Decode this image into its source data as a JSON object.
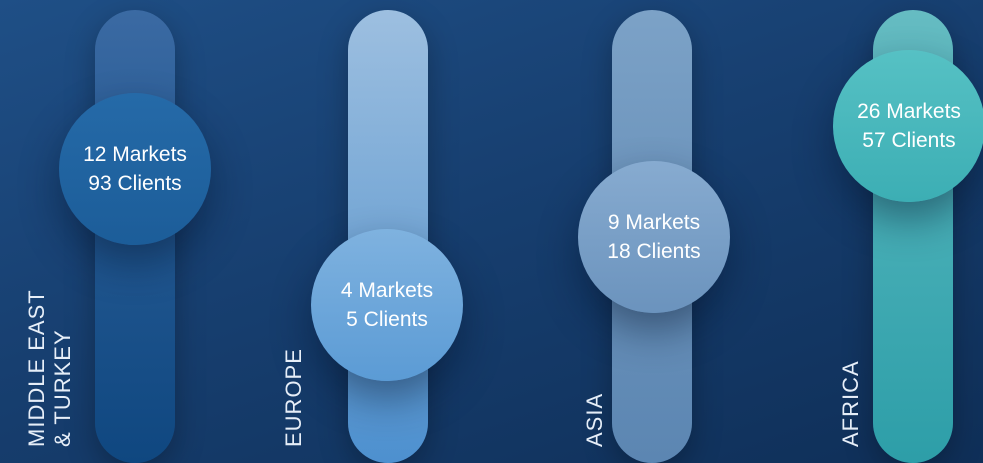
{
  "regions": [
    {
      "name_line1": "MIDDLE EAST",
      "name_line2": "& TURKEY",
      "markets": "12 Markets",
      "clients": "93 Clients"
    },
    {
      "name_line1": "EUROPE",
      "name_line2": "",
      "markets": "4 Markets",
      "clients": "5 Clients"
    },
    {
      "name_line1": "ASIA",
      "name_line2": "",
      "markets": "9 Markets",
      "clients": "18 Clients"
    },
    {
      "name_line1": "AFRICA",
      "name_line2": "",
      "markets": "26 Markets",
      "clients": "57 Clients"
    }
  ]
}
